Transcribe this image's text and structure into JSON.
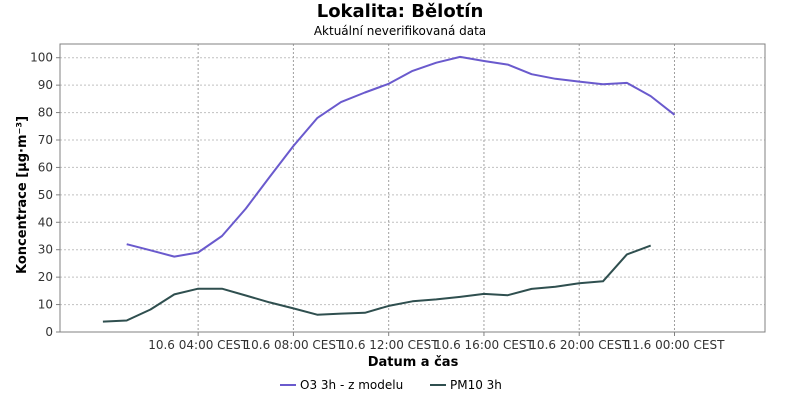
{
  "chart_data": {
    "type": "line",
    "title": "Lokalita: Bělotín",
    "subtitle": "Aktuální neverifikovaná data",
    "xlabel": "Datum a čas",
    "ylabel": "Koncentrace [µg·m⁻³]",
    "ylim": [
      0,
      105
    ],
    "yticks": [
      0,
      10,
      20,
      30,
      40,
      50,
      60,
      70,
      80,
      90,
      100
    ],
    "x_unit_hours": "hours since 10.6 00:00",
    "xlim": [
      -1.8,
      27.8
    ],
    "xticks": [
      {
        "x": 4,
        "label": "10.6 04:00 CEST"
      },
      {
        "x": 8,
        "label": "10.6 08:00 CEST"
      },
      {
        "x": 12,
        "label": "10.6 12:00 CEST"
      },
      {
        "x": 16,
        "label": "10.6 16:00 CEST"
      },
      {
        "x": 20,
        "label": "10.6 20:00 CEST"
      },
      {
        "x": 24,
        "label": "11.6 00:00 CEST"
      }
    ],
    "grid": true,
    "legend_position": "bottom",
    "series": [
      {
        "name": "O3 3h - z modelu",
        "color": "#6a5acd",
        "x": [
          1,
          2,
          3,
          4,
          5,
          6,
          7,
          8,
          9,
          10,
          11,
          12,
          13,
          14,
          15,
          16,
          17,
          18,
          19,
          20,
          21,
          22,
          23,
          24,
          25
        ],
        "values": [
          32,
          29.8,
          27.5,
          29,
          35,
          45,
          56.5,
          67.8,
          78,
          83.8,
          87.3,
          90.5,
          95.2,
          98.2,
          100.3,
          98.8,
          97.5,
          94,
          92.3,
          91.3,
          90.3,
          90.8,
          86,
          79.2,
          null
        ]
      },
      {
        "name": "PM10 3h",
        "color": "#2f4f4f",
        "x": [
          0,
          1,
          2,
          3,
          4,
          5,
          6,
          7,
          8,
          9,
          10,
          11,
          12,
          13,
          14,
          15,
          16,
          17,
          18,
          19,
          20,
          21,
          22,
          23,
          24,
          25
        ],
        "values": [
          3.8,
          4.2,
          8.2,
          13.7,
          15.8,
          15.8,
          13.3,
          10.8,
          8.6,
          6.3,
          6.7,
          7,
          9.5,
          11.2,
          11.9,
          12.8,
          13.9,
          13.4,
          15.7,
          16.5,
          17.8,
          18.5,
          28.3,
          31.5,
          null,
          null
        ]
      }
    ]
  }
}
